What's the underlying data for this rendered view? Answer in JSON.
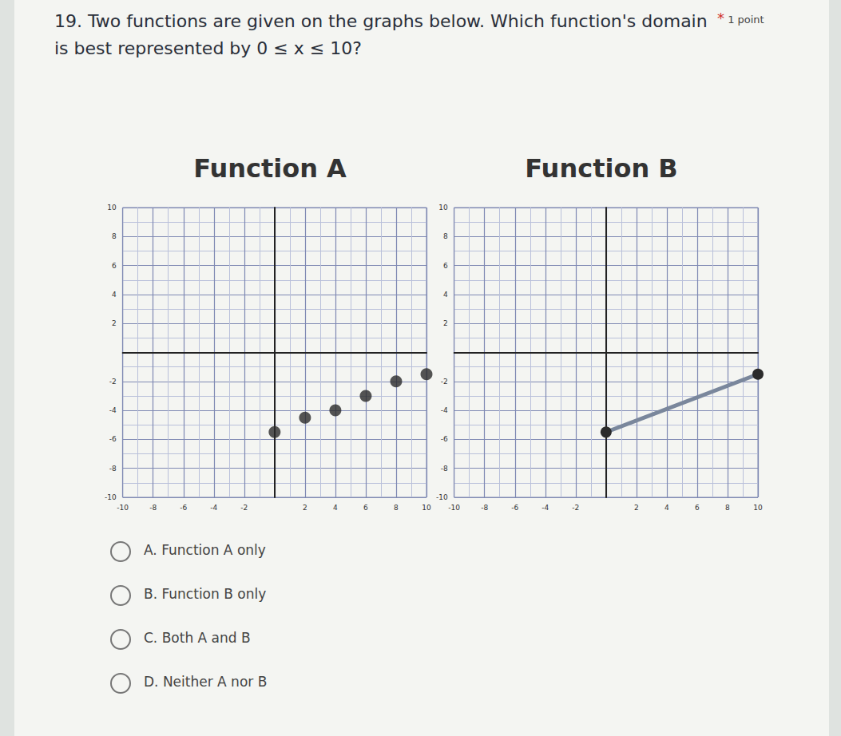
{
  "question": {
    "text": "19. Two functions are given on the graphs below. Which function's domain is best represented by 0 ≤ x ≤ 10?",
    "required_mark": "*",
    "points": "1 point"
  },
  "options": [
    "A. Function A only",
    "B. Function B only",
    "C. Both A and B",
    "D. Neither A nor B"
  ],
  "chart_data": [
    {
      "type": "scatter",
      "title": "Function A",
      "x": [
        0,
        2,
        4,
        6,
        8,
        10
      ],
      "values": [
        -5.5,
        -4.5,
        -4,
        -3,
        -2,
        -1.5
      ],
      "color": "#2b2b2b",
      "marker": "circle",
      "xlim": [
        -10,
        10
      ],
      "ylim": [
        -10,
        10
      ],
      "xticks": [
        -10,
        -8,
        -6,
        -4,
        -2,
        2,
        4,
        6,
        8,
        10
      ],
      "yticks": [
        -10,
        -8,
        -6,
        -4,
        -2,
        2,
        4,
        6,
        8,
        10
      ],
      "grid": true
    },
    {
      "type": "line",
      "title": "Function B",
      "x": [
        0,
        10
      ],
      "values": [
        -5.5,
        -1.5
      ],
      "color": "#7a879c",
      "marker": "circle",
      "xlim": [
        -10,
        10
      ],
      "ylim": [
        -10,
        10
      ],
      "xticks": [
        -10,
        -8,
        -6,
        -4,
        -2,
        2,
        4,
        6,
        8,
        10
      ],
      "yticks": [
        -10,
        -8,
        -6,
        -4,
        -2,
        2,
        4,
        6,
        8,
        10
      ],
      "grid": true
    }
  ]
}
